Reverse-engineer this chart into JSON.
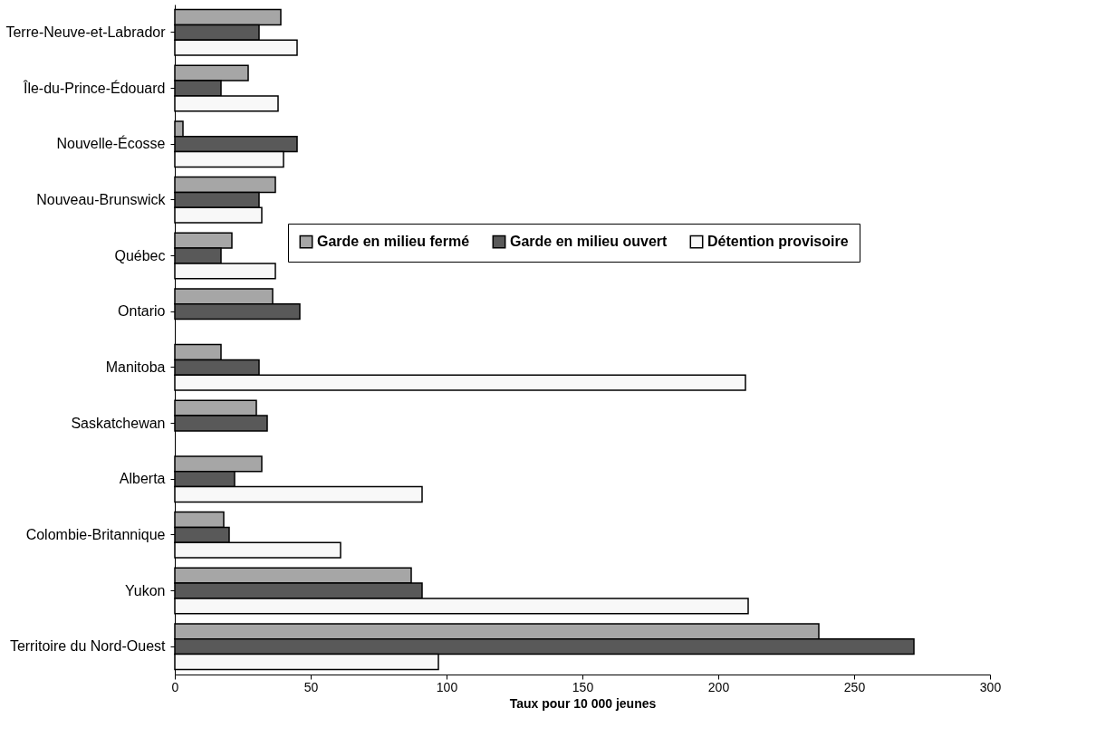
{
  "chart_data": {
    "type": "bar",
    "orientation": "horizontal",
    "xlabel": "Taux pour 10 000 jeunes",
    "categories": [
      "Terre-Neuve-et-Labrador",
      "Île-du-Prince-Édouard",
      "Nouvelle-Écosse",
      "Nouveau-Brunswick",
      "Québec",
      "Ontario",
      "Manitoba",
      "Saskatchewan",
      "Alberta",
      "Colombie-Britannique",
      "Yukon",
      "Territoire du Nord-Ouest"
    ],
    "series": [
      {
        "name": "Garde en milieu fermé",
        "color": "#a6a6a6",
        "values": [
          39,
          27,
          3,
          37,
          21,
          36,
          17,
          30,
          32,
          18,
          87,
          237
        ]
      },
      {
        "name": "Garde en milieu ouvert",
        "color": "#595959",
        "values": [
          31,
          17,
          45,
          31,
          17,
          46,
          31,
          34,
          22,
          20,
          91,
          272
        ]
      },
      {
        "name": "Détention provisoire",
        "color": "#f8f8f8",
        "values": [
          45,
          38,
          40,
          32,
          37,
          null,
          210,
          null,
          91,
          61,
          211,
          97
        ]
      }
    ],
    "xlim": [
      0,
      300
    ],
    "xticks": [
      0,
      50,
      100,
      150,
      200,
      250,
      300
    ],
    "grid": false,
    "legend": "right"
  }
}
